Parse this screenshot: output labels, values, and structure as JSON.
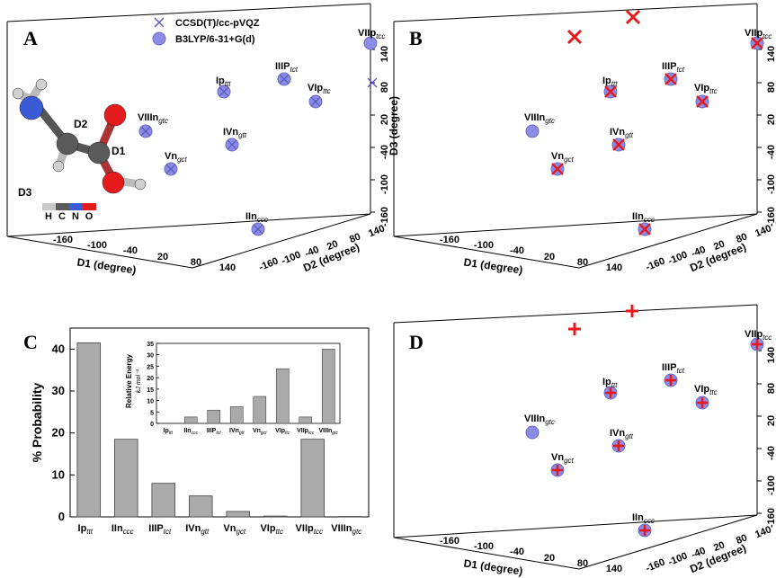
{
  "panels": {
    "A": "A",
    "B": "B",
    "C": "C",
    "D": "D"
  },
  "legend": [
    {
      "label": "CCSD(T)/cc-pVQZ",
      "marker": "x",
      "color": "#5a5abf"
    },
    {
      "label": "B3LYP/6-31+G(d)",
      "marker": "circle",
      "color": "#8c8ce6"
    }
  ],
  "molecule": {
    "labels": {
      "d1": "D1",
      "d2": "D2",
      "d3": "D3"
    },
    "colorbar": [
      "H",
      "C",
      "N",
      "O"
    ],
    "colorbar_colors": [
      "#c8c8c8",
      "#5a5a5a",
      "#3b5bd6",
      "#e41a1c"
    ]
  },
  "axes3d": {
    "d1_label": "D1 (degree)",
    "d2_label": "D2 (degree)",
    "d3_label": "D3 (degree)",
    "d1_ticks": [
      "-160",
      "-100",
      "-40",
      "20",
      "80",
      "140"
    ],
    "d2_ticks": [
      "-160",
      "-100",
      "-40",
      "20",
      "80",
      "140"
    ],
    "d3_ticks": [
      "-160",
      "-100",
      "-40",
      "20",
      "80",
      "140"
    ]
  },
  "colors": {
    "b3lyp": "#8c8ce6",
    "ccsd": "#5a5abf",
    "red": "#e41a1c",
    "bar": "#aaaaaa"
  },
  "chart_data": [
    {
      "panel": "A",
      "type": "scatter",
      "points": [
        {
          "main": "Ip",
          "sub": "ttt"
        },
        {
          "main": "IIIP",
          "sub": "tct"
        },
        {
          "main": "VIIp",
          "sub": "tcc"
        },
        {
          "main": "VIp",
          "sub": "ttc"
        },
        {
          "main": "VIIIn",
          "sub": "gtc"
        },
        {
          "main": "IVn",
          "sub": "gtt"
        },
        {
          "main": "Vn",
          "sub": "gct"
        },
        {
          "main": "IIn",
          "sub": "ccc"
        }
      ]
    },
    {
      "panel": "C",
      "type": "bar",
      "ylabel": "% Probability",
      "ylim": [
        0,
        45
      ],
      "yticks": [
        0,
        10,
        20,
        30,
        40
      ],
      "categories": [
        {
          "main": "Ip",
          "sub": "ttt"
        },
        {
          "main": "IIn",
          "sub": "ccc"
        },
        {
          "main": "IIIP",
          "sub": "tct"
        },
        {
          "main": "IVn",
          "sub": "gtt"
        },
        {
          "main": "Vn",
          "sub": "gct"
        },
        {
          "main": "VIp",
          "sub": "ttc"
        },
        {
          "main": "VIIp",
          "sub": "tcc"
        },
        {
          "main": "VIIIn",
          "sub": "gtc"
        }
      ],
      "values": [
        41.5,
        18.5,
        8.0,
        5.0,
        1.3,
        0.2,
        18.5,
        0.1
      ]
    },
    {
      "panel": "C-inset",
      "type": "bar",
      "ylabel": "Relative Energy",
      "yunit": "kJ mol⁻¹",
      "ylim": [
        0,
        35
      ],
      "yticks": [
        0,
        5,
        10,
        15,
        20,
        25,
        30,
        35
      ],
      "categories": [
        {
          "main": "Ip",
          "sub": "ttt"
        },
        {
          "main": "IIn",
          "sub": "ccc"
        },
        {
          "main": "IIIP",
          "sub": "tct"
        },
        {
          "main": "IVn",
          "sub": "gtt"
        },
        {
          "main": "Vn",
          "sub": "gct"
        },
        {
          "main": "VIp",
          "sub": "ttc"
        },
        {
          "main": "VIIp",
          "sub": "tcc"
        },
        {
          "main": "VIIIn",
          "sub": "gtc"
        }
      ],
      "values": [
        0,
        2.8,
        5.8,
        7.3,
        11.8,
        23.9,
        2.8,
        32.5
      ]
    }
  ]
}
